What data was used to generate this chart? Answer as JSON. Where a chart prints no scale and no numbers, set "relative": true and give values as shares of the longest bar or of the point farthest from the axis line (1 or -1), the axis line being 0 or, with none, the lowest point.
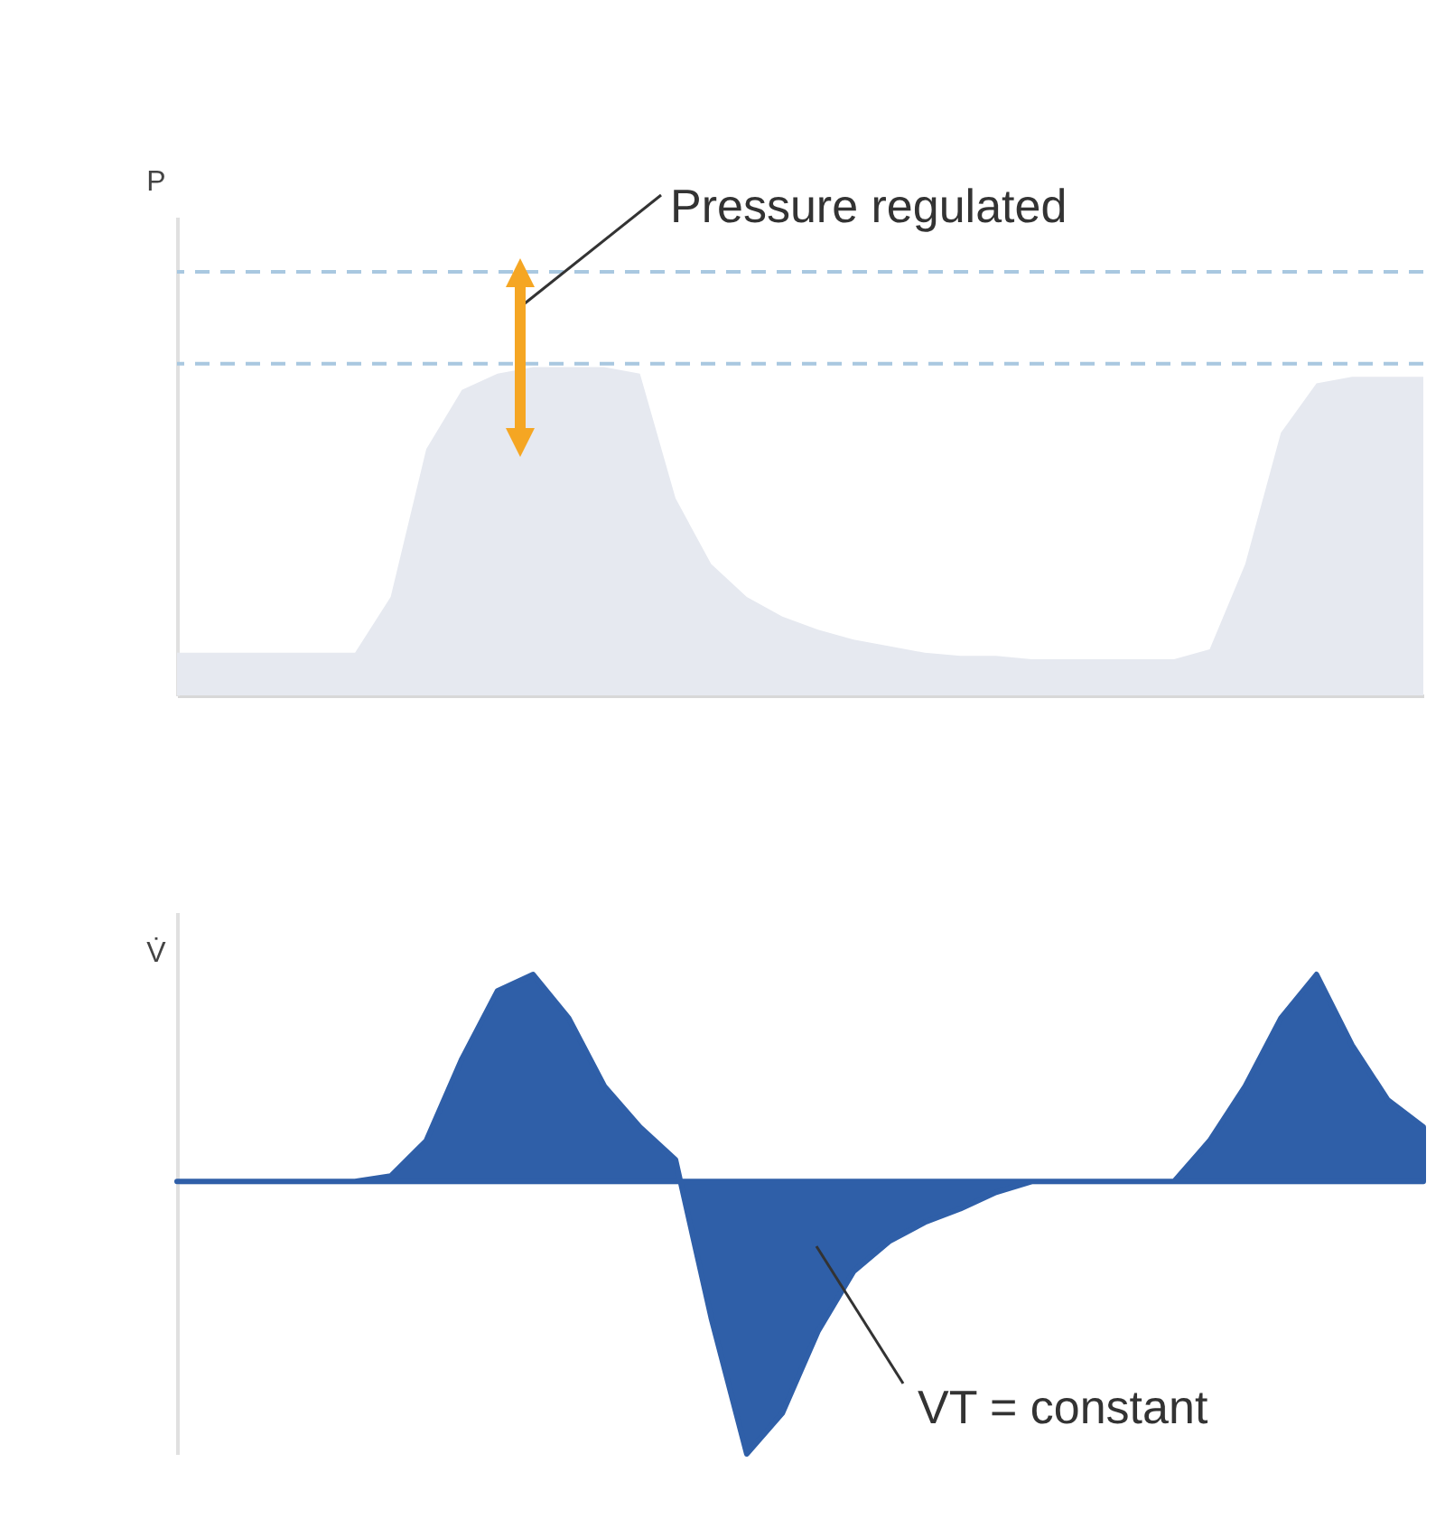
{
  "chart_data": [
    {
      "type": "area",
      "ylabel": "P",
      "relative": true,
      "tick_labels": false,
      "annotations": [
        "Pressure regulated"
      ],
      "categories": [
        null,
        null,
        null,
        null,
        null,
        null,
        null,
        null,
        null,
        null,
        null,
        null,
        null,
        null,
        null,
        null,
        null,
        null,
        null,
        null,
        null,
        null,
        null,
        null,
        null,
        null,
        null,
        null,
        null,
        null,
        null,
        null,
        null,
        null,
        null,
        null
      ],
      "series": [
        {
          "color": "#e6e9f0",
          "values": [
            0.13,
            0.13,
            0.13,
            0.13,
            0.13,
            0.13,
            0.3,
            0.75,
            0.93,
            0.98,
            1,
            1,
            1,
            0.98,
            0.6,
            0.4,
            0.3,
            0.24,
            0.2,
            0.17,
            0.15,
            0.13,
            0.12,
            0.12,
            0.11,
            0.11,
            0.11,
            0.11,
            0.11,
            0.14,
            0.4,
            0.8,
            0.95,
            0.97,
            0.97,
            0.97
          ]
        }
      ],
      "ref_lines": [
        {
          "axis": "y",
          "value": 1.29,
          "color": "#a9c8e0",
          "line_style": "dashed"
        },
        {
          "axis": "y",
          "value": 1.01,
          "color": "#a9c8e0",
          "line_style": "dashed"
        }
      ]
    },
    {
      "type": "area",
      "ylabel": "V̇",
      "relative": true,
      "tick_labels": false,
      "annotations": [
        "VT = constant"
      ],
      "categories": [
        null,
        null,
        null,
        null,
        null,
        null,
        null,
        null,
        null,
        null,
        null,
        null,
        null,
        null,
        null,
        null,
        null,
        null,
        null,
        null,
        null,
        null,
        null,
        null,
        null,
        null,
        null,
        null,
        null,
        null,
        null,
        null,
        null,
        null,
        null,
        null
      ],
      "series": [
        {
          "color": "#2f5fa8",
          "values": [
            0,
            0,
            0,
            0,
            0,
            0,
            0.02,
            0.15,
            0.45,
            0.7,
            0.76,
            0.6,
            0.35,
            0.2,
            0.08,
            -0.5,
            -1,
            -0.85,
            -0.55,
            -0.33,
            -0.22,
            -0.15,
            -0.1,
            -0.04,
            0,
            0,
            0,
            0,
            0,
            0.15,
            0.35,
            0.6,
            0.76,
            0.5,
            0.3,
            0.2
          ]
        }
      ]
    }
  ]
}
